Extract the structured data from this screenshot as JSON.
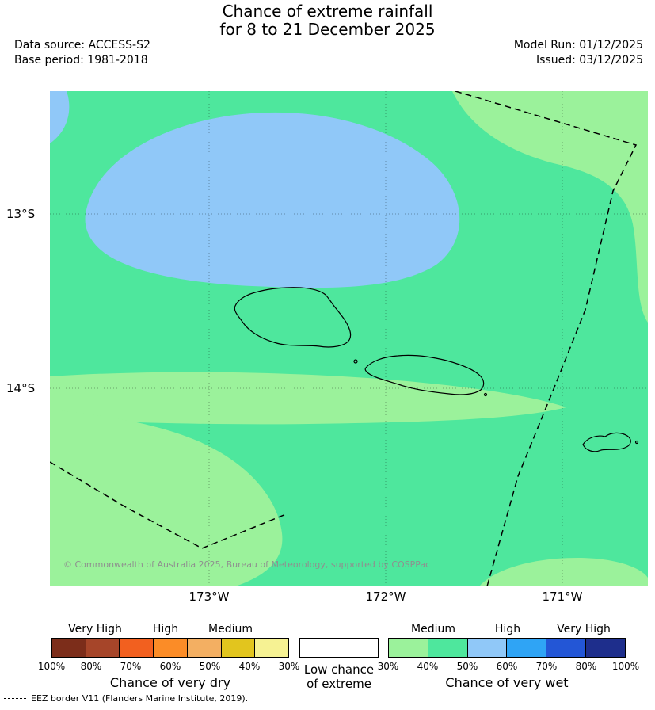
{
  "header": {
    "title_line1": "Chance of extreme rainfall",
    "title_line2": "for 8 to 21 December 2025",
    "data_source": "Data source: ACCESS-S2",
    "base_period": "Base period: 1981-2018",
    "model_run": "Model Run: 01/12/2025",
    "issued": "Issued: 03/12/2025"
  },
  "map": {
    "lat_labels": [
      "13°S",
      "14°S"
    ],
    "lon_labels": [
      "173°W",
      "172°W",
      "171°W"
    ],
    "copyright": "© Commonwealth of Australia 2025, Bureau of Meteorology, supported by COSPPac",
    "colors": {
      "very_wet_30_40": "#9BF29B",
      "very_wet_40_50": "#4EE79D",
      "very_wet_50_60": "#90C8F8",
      "coastline": "#000000",
      "eez_border": "#000000"
    }
  },
  "legend": {
    "dry": {
      "labels": [
        "Very High",
        "High",
        "Medium"
      ],
      "colors": [
        "#7C2D1A",
        "#A64529",
        "#F2601F",
        "#FB8C27",
        "#F3AF62",
        "#E2C51E",
        "#F6F293"
      ],
      "ticks": [
        "100%",
        "80%",
        "70%",
        "60%",
        "50%",
        "40%",
        "30%"
      ],
      "caption": "Chance of very dry"
    },
    "low": {
      "line1": "Low chance",
      "line2": "of extreme",
      "box_color": "#FFFFFF"
    },
    "wet": {
      "labels": [
        "Medium",
        "High",
        "Very High"
      ],
      "colors": [
        "#9BF29B",
        "#4EE79D",
        "#90C8F8",
        "#2FA4F5",
        "#2356D6",
        "#1E2E8C"
      ],
      "ticks": [
        "30%",
        "40%",
        "50%",
        "60%",
        "70%",
        "80%",
        "100%"
      ],
      "caption": "Chance of very wet"
    }
  },
  "footer": {
    "eez_note": "EEZ border V11 (Flanders Marine Institute, 2019)."
  }
}
